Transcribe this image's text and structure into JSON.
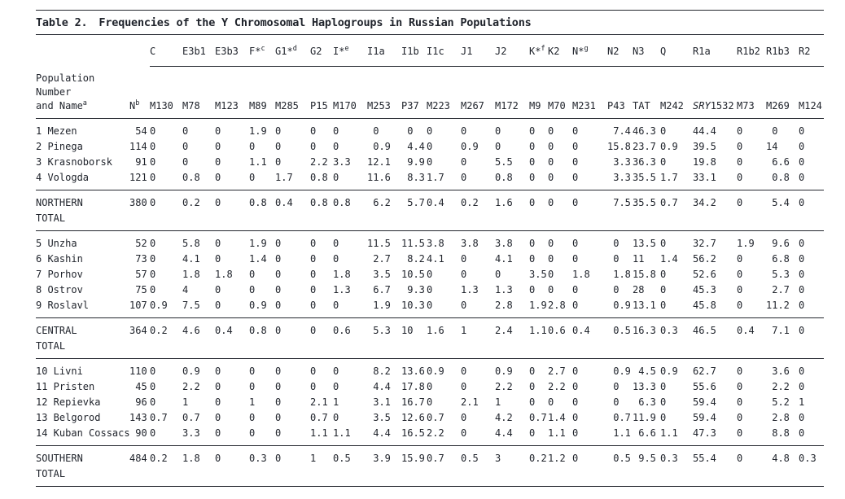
{
  "title": {
    "label": "Table 2.",
    "text": "Frequencies of the Y Chromosomal Haplogroups in Russian Populations"
  },
  "table": {
    "row_header": {
      "lines": [
        "Population",
        "Number",
        "and Name"
      ],
      "sup": "a"
    },
    "n_column": {
      "label": "N",
      "sup": "b"
    },
    "haplogroups": [
      {
        "name": "C",
        "sup": ""
      },
      {
        "name": "E3b1",
        "sup": ""
      },
      {
        "name": "E3b3",
        "sup": ""
      },
      {
        "name": "F*",
        "sup": "c"
      },
      {
        "name": "G1*",
        "sup": "d"
      },
      {
        "name": "G2",
        "sup": ""
      },
      {
        "name": "I*",
        "sup": "e"
      },
      {
        "name": "I1a",
        "sup": ""
      },
      {
        "name": "I1b",
        "sup": ""
      },
      {
        "name": "I1c",
        "sup": ""
      },
      {
        "name": "J1",
        "sup": ""
      },
      {
        "name": "J2",
        "sup": ""
      },
      {
        "name": "K*",
        "sup": "f"
      },
      {
        "name": "K2",
        "sup": ""
      },
      {
        "name": "N*",
        "sup": "g"
      },
      {
        "name": "N2",
        "sup": ""
      },
      {
        "name": "N3",
        "sup": ""
      },
      {
        "name": "Q",
        "sup": ""
      },
      {
        "name": "R1a",
        "sup": ""
      },
      {
        "name": "R1b2",
        "sup": ""
      },
      {
        "name": "R1b3",
        "sup": ""
      },
      {
        "name": "R2",
        "sup": ""
      }
    ],
    "markers": [
      {
        "italic": "",
        "text": "M130"
      },
      {
        "italic": "",
        "text": "M78"
      },
      {
        "italic": "",
        "text": "M123"
      },
      {
        "italic": "",
        "text": "M89"
      },
      {
        "italic": "",
        "text": "M285"
      },
      {
        "italic": "",
        "text": "P15"
      },
      {
        "italic": "",
        "text": "M170"
      },
      {
        "italic": "",
        "text": "M253"
      },
      {
        "italic": "",
        "text": "P37"
      },
      {
        "italic": "",
        "text": "M223"
      },
      {
        "italic": "",
        "text": "M267"
      },
      {
        "italic": "",
        "text": "M172"
      },
      {
        "italic": "",
        "text": "M9"
      },
      {
        "italic": "",
        "text": "M70"
      },
      {
        "italic": "",
        "text": "M231"
      },
      {
        "italic": "",
        "text": "P43"
      },
      {
        "italic": "",
        "text": "TAT"
      },
      {
        "italic": "",
        "text": "M242"
      },
      {
        "italic": "SRY",
        "text": "1532"
      },
      {
        "italic": "",
        "text": "M73"
      },
      {
        "italic": "",
        "text": "M269"
      },
      {
        "italic": "",
        "text": "M124"
      }
    ],
    "groups": [
      {
        "rows": [
          {
            "name": "1 Mezen",
            "values": [
              "54",
              "0",
              "0",
              "0",
              "1.9",
              "0",
              "0",
              "0",
              "0",
              "0",
              "0",
              "0",
              "0",
              "0",
              "0",
              "0",
              "7.4",
              "46.3",
              "0",
              "44.4",
              "0",
              "0",
              "0"
            ]
          },
          {
            "name": "2 Pinega",
            "values": [
              "114",
              "0",
              "0",
              "0",
              "0",
              "0",
              "0",
              "0",
              "0.9",
              "4.4",
              "0",
              "0.9",
              "0",
              "0",
              "0",
              "0",
              "15.8",
              "23.7",
              "0.9",
              "39.5",
              "0",
              "14",
              "0"
            ]
          },
          {
            "name": "3 Krasnoborsk",
            "values": [
              "91",
              "0",
              "0",
              "0",
              "1.1",
              "0",
              "2.2",
              "3.3",
              "12.1",
              "9.9",
              "0",
              "0",
              "5.5",
              "0",
              "0",
              "0",
              "3.3",
              "36.3",
              "0",
              "19.8",
              "0",
              "6.6",
              "0"
            ]
          },
          {
            "name": "4 Vologda",
            "values": [
              "121",
              "0",
              "0.8",
              "0",
              "0",
              "1.7",
              "0.8",
              "0",
              "11.6",
              "8.3",
              "1.7",
              "0",
              "0.8",
              "0",
              "0",
              "0",
              "3.3",
              "35.5",
              "1.7",
              "33.1",
              "0",
              "0.8",
              "0"
            ]
          }
        ],
        "total": {
          "name_lines": [
            "NORTHERN",
            "TOTAL"
          ],
          "values": [
            "380",
            "0",
            "0.2",
            "0",
            "0.8",
            "0.4",
            "0.8",
            "0.8",
            "6.2",
            "5.7",
            "0.4",
            "0.2",
            "1.6",
            "0",
            "0",
            "0",
            "7.5",
            "35.5",
            "0.7",
            "34.2",
            "0",
            "5.4",
            "0"
          ]
        }
      },
      {
        "rows": [
          {
            "name": "5 Unzha",
            "values": [
              "52",
              "0",
              "5.8",
              "0",
              "1.9",
              "0",
              "0",
              "0",
              "11.5",
              "11.5",
              "3.8",
              "3.8",
              "3.8",
              "0",
              "0",
              "0",
              "0",
              "13.5",
              "0",
              "32.7",
              "1.9",
              "9.6",
              "0"
            ]
          },
          {
            "name": "6 Kashin",
            "values": [
              "73",
              "0",
              "4.1",
              "0",
              "1.4",
              "0",
              "0",
              "0",
              "2.7",
              "8.2",
              "4.1",
              "0",
              "4.1",
              "0",
              "0",
              "0",
              "0",
              "11",
              "1.4",
              "56.2",
              "0",
              "6.8",
              "0"
            ]
          },
          {
            "name": "7 Porhov",
            "values": [
              "57",
              "0",
              "1.8",
              "1.8",
              "0",
              "0",
              "0",
              "1.8",
              "3.5",
              "10.5",
              "0",
              "0",
              "0",
              "3.5",
              "0",
              "1.8",
              "1.8",
              "15.8",
              "0",
              "52.6",
              "0",
              "5.3",
              "0"
            ]
          },
          {
            "name": "8 Ostrov",
            "values": [
              "75",
              "0",
              "4",
              "0",
              "0",
              "0",
              "0",
              "1.3",
              "6.7",
              "9.3",
              "0",
              "1.3",
              "1.3",
              "0",
              "0",
              "0",
              "0",
              "28",
              "0",
              "45.3",
              "0",
              "2.7",
              "0"
            ]
          },
          {
            "name": "9 Roslavl",
            "values": [
              "107",
              "0.9",
              "7.5",
              "0",
              "0.9",
              "0",
              "0",
              "0",
              "1.9",
              "10.3",
              "0",
              "0",
              "2.8",
              "1.9",
              "2.8",
              "0",
              "0.9",
              "13.1",
              "0",
              "45.8",
              "0",
              "11.2",
              "0"
            ]
          }
        ],
        "total": {
          "name_lines": [
            "CENTRAL",
            "TOTAL"
          ],
          "values": [
            "364",
            "0.2",
            "4.6",
            "0.4",
            "0.8",
            "0",
            "0",
            "0.6",
            "5.3",
            "10",
            "1.6",
            "1",
            "2.4",
            "1.1",
            "0.6",
            "0.4",
            "0.5",
            "16.3",
            "0.3",
            "46.5",
            "0.4",
            "7.1",
            "0"
          ]
        }
      },
      {
        "rows": [
          {
            "name": "10 Livni",
            "values": [
              "110",
              "0",
              "0.9",
              "0",
              "0",
              "0",
              "0",
              "0",
              "8.2",
              "13.6",
              "0.9",
              "0",
              "0.9",
              "0",
              "2.7",
              "0",
              "0.9",
              "4.5",
              "0.9",
              "62.7",
              "0",
              "3.6",
              "0"
            ]
          },
          {
            "name": "11 Pristen",
            "values": [
              "45",
              "0",
              "2.2",
              "0",
              "0",
              "0",
              "0",
              "0",
              "4.4",
              "17.8",
              "0",
              "0",
              "2.2",
              "0",
              "2.2",
              "0",
              "0",
              "13.3",
              "0",
              "55.6",
              "0",
              "2.2",
              "0"
            ]
          },
          {
            "name": "12 Repievka",
            "values": [
              "96",
              "0",
              "1",
              "0",
              "1",
              "0",
              "2.1",
              "1",
              "3.1",
              "16.7",
              "0",
              "2.1",
              "1",
              "0",
              "0",
              "0",
              "0",
              "6.3",
              "0",
              "59.4",
              "0",
              "5.2",
              "1"
            ]
          },
          {
            "name": "13 Belgorod",
            "values": [
              "143",
              "0.7",
              "0.7",
              "0",
              "0",
              "0",
              "0.7",
              "0",
              "3.5",
              "12.6",
              "0.7",
              "0",
              "4.2",
              "0.7",
              "1.4",
              "0",
              "0.7",
              "11.9",
              "0",
              "59.4",
              "0",
              "2.8",
              "0"
            ]
          },
          {
            "name": "14 Kuban Cossacs",
            "values": [
              "90",
              "0",
              "3.3",
              "0",
              "0",
              "0",
              "1.1",
              "1.1",
              "4.4",
              "16.5",
              "2.2",
              "0",
              "4.4",
              "0",
              "1.1",
              "0",
              "1.1",
              "6.6",
              "1.1",
              "47.3",
              "0",
              "8.8",
              "0"
            ]
          }
        ],
        "total": {
          "name_lines": [
            "SOUTHERN",
            "TOTAL"
          ],
          "values": [
            "484",
            "0.2",
            "1.8",
            "0",
            "0.3",
            "0",
            "1",
            "0.5",
            "3.9",
            "15.9",
            "0.7",
            "0.5",
            "3",
            "0.2",
            "1.2",
            "0",
            "0.5",
            "9.5",
            "0.3",
            "55.4",
            "0",
            "4.8",
            "0.3"
          ]
        }
      }
    ]
  }
}
